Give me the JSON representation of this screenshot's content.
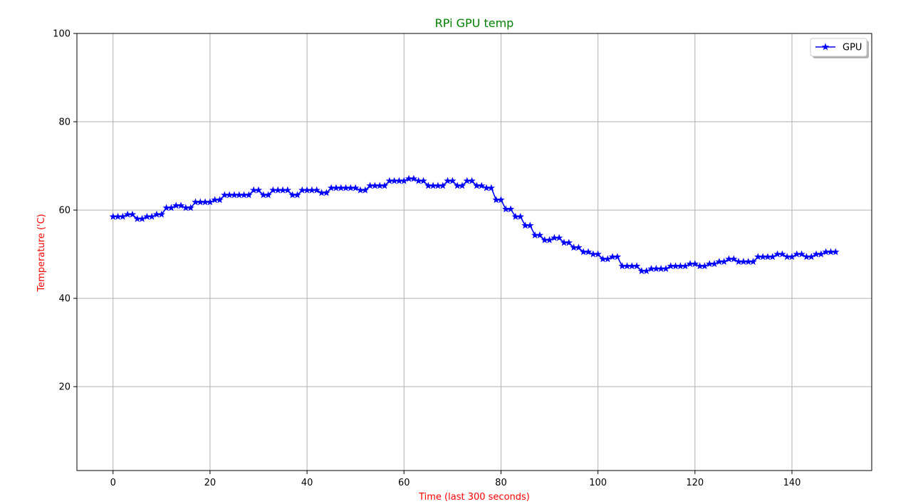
{
  "chart_data": {
    "type": "line",
    "title": "RPi GPU temp",
    "xlabel": "Time (last 300 seconds)",
    "ylabel": "Temperature ('C)",
    "xlim": [
      -7.45,
      156.45
    ],
    "ylim": [
      1,
      100
    ],
    "xticks": [
      0,
      20,
      40,
      60,
      80,
      100,
      120,
      140
    ],
    "yticks": [
      20,
      40,
      60,
      80,
      100
    ],
    "grid": true,
    "legend_position": "top-right",
    "colors": {
      "title": "#008000",
      "axis_label": "#ff0000",
      "series": "#0000ff",
      "grid": "#b0b0b0"
    },
    "series": [
      {
        "name": "GPU",
        "marker": "star",
        "x": [
          0,
          1,
          2,
          3,
          4,
          5,
          6,
          7,
          8,
          9,
          10,
          11,
          12,
          13,
          14,
          15,
          16,
          17,
          18,
          19,
          20,
          21,
          22,
          23,
          24,
          25,
          26,
          27,
          28,
          29,
          30,
          31,
          32,
          33,
          34,
          35,
          36,
          37,
          38,
          39,
          40,
          41,
          42,
          43,
          44,
          45,
          46,
          47,
          48,
          49,
          50,
          51,
          52,
          53,
          54,
          55,
          56,
          57,
          58,
          59,
          60,
          61,
          62,
          63,
          64,
          65,
          66,
          67,
          68,
          69,
          70,
          71,
          72,
          73,
          74,
          75,
          76,
          77,
          78,
          79,
          80,
          81,
          82,
          83,
          84,
          85,
          86,
          87,
          88,
          89,
          90,
          91,
          92,
          93,
          94,
          95,
          96,
          97,
          98,
          99,
          100,
          101,
          102,
          103,
          104,
          105,
          106,
          107,
          108,
          109,
          110,
          111,
          112,
          113,
          114,
          115,
          116,
          117,
          118,
          119,
          120,
          121,
          122,
          123,
          124,
          125,
          126,
          127,
          128,
          129,
          130,
          131,
          132,
          133,
          134,
          135,
          136,
          137,
          138,
          139,
          140,
          141,
          142,
          143,
          144,
          145,
          146,
          147,
          148,
          149
        ],
        "y": [
          58.5,
          58.5,
          58.5,
          59.0,
          59.0,
          58.0,
          58.0,
          58.5,
          58.5,
          59.0,
          59.0,
          60.5,
          60.5,
          61.0,
          61.0,
          60.5,
          60.5,
          61.8,
          61.8,
          61.8,
          61.8,
          62.3,
          62.3,
          63.4,
          63.4,
          63.4,
          63.4,
          63.4,
          63.4,
          64.5,
          64.5,
          63.4,
          63.4,
          64.5,
          64.5,
          64.5,
          64.5,
          63.4,
          63.4,
          64.5,
          64.5,
          64.5,
          64.5,
          63.9,
          63.9,
          65.0,
          65.0,
          65.0,
          65.0,
          65.0,
          65.0,
          64.5,
          64.5,
          65.5,
          65.5,
          65.5,
          65.5,
          66.6,
          66.6,
          66.6,
          66.6,
          67.1,
          67.1,
          66.6,
          66.6,
          65.5,
          65.5,
          65.5,
          65.5,
          66.6,
          66.6,
          65.5,
          65.5,
          66.6,
          66.6,
          65.5,
          65.5,
          65.0,
          65.0,
          62.3,
          62.3,
          60.2,
          60.2,
          58.5,
          58.5,
          56.5,
          56.5,
          54.3,
          54.3,
          53.2,
          53.2,
          53.7,
          53.7,
          52.6,
          52.6,
          51.5,
          51.5,
          50.5,
          50.5,
          50.0,
          50.0,
          48.9,
          48.9,
          49.4,
          49.4,
          47.3,
          47.3,
          47.3,
          47.3,
          46.2,
          46.2,
          46.7,
          46.7,
          46.7,
          46.7,
          47.3,
          47.3,
          47.3,
          47.3,
          47.8,
          47.8,
          47.3,
          47.3,
          47.8,
          47.8,
          48.3,
          48.3,
          48.9,
          48.9,
          48.3,
          48.3,
          48.3,
          48.3,
          49.4,
          49.4,
          49.4,
          49.4,
          50.0,
          50.0,
          49.4,
          49.4,
          50.0,
          50.0,
          49.4,
          49.4,
          50.0,
          50.0,
          50.5,
          50.5,
          50.5
        ]
      }
    ]
  }
}
